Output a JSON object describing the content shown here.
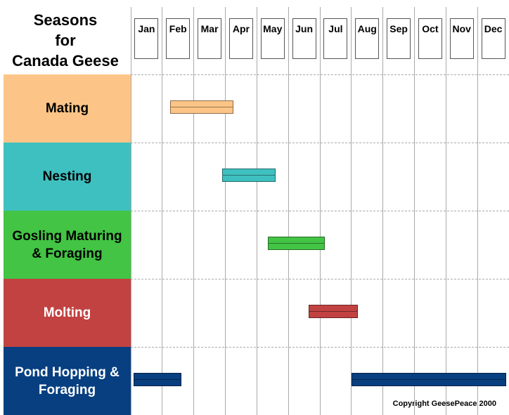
{
  "chart_data": {
    "type": "gantt",
    "title": "Seasons\nfor\nCanada Geese",
    "months": [
      "Jan",
      "Feb",
      "Mar",
      "Apr",
      "May",
      "Jun",
      "Jul",
      "Aug",
      "Sep",
      "Oct",
      "Nov",
      "Dec"
    ],
    "rows": [
      {
        "name": "Mating",
        "color": "#fcc587",
        "label_color": "#000000",
        "spans": [
          {
            "start": 1.25,
            "end": 3.25
          }
        ]
      },
      {
        "name": "Nesting",
        "color": "#3fc0c0",
        "label_color": "#000000",
        "spans": [
          {
            "start": 2.9,
            "end": 4.6
          }
        ]
      },
      {
        "name": "Gosling Maturing & Foraging",
        "color": "#43c444",
        "label_color": "#000000",
        "spans": [
          {
            "start": 4.35,
            "end": 6.15
          }
        ]
      },
      {
        "name": "Molting",
        "color": "#c24242",
        "label_color": "#ffffff",
        "spans": [
          {
            "start": 5.65,
            "end": 7.2
          }
        ]
      },
      {
        "name": "Pond Hopping & Foraging",
        "color": "#073f80",
        "label_color": "#ffffff",
        "spans": [
          {
            "start": 0.1,
            "end": 1.6
          },
          {
            "start": 7.0,
            "end": 11.9
          }
        ]
      }
    ],
    "note": "Copyright GeesePeace 2000"
  }
}
